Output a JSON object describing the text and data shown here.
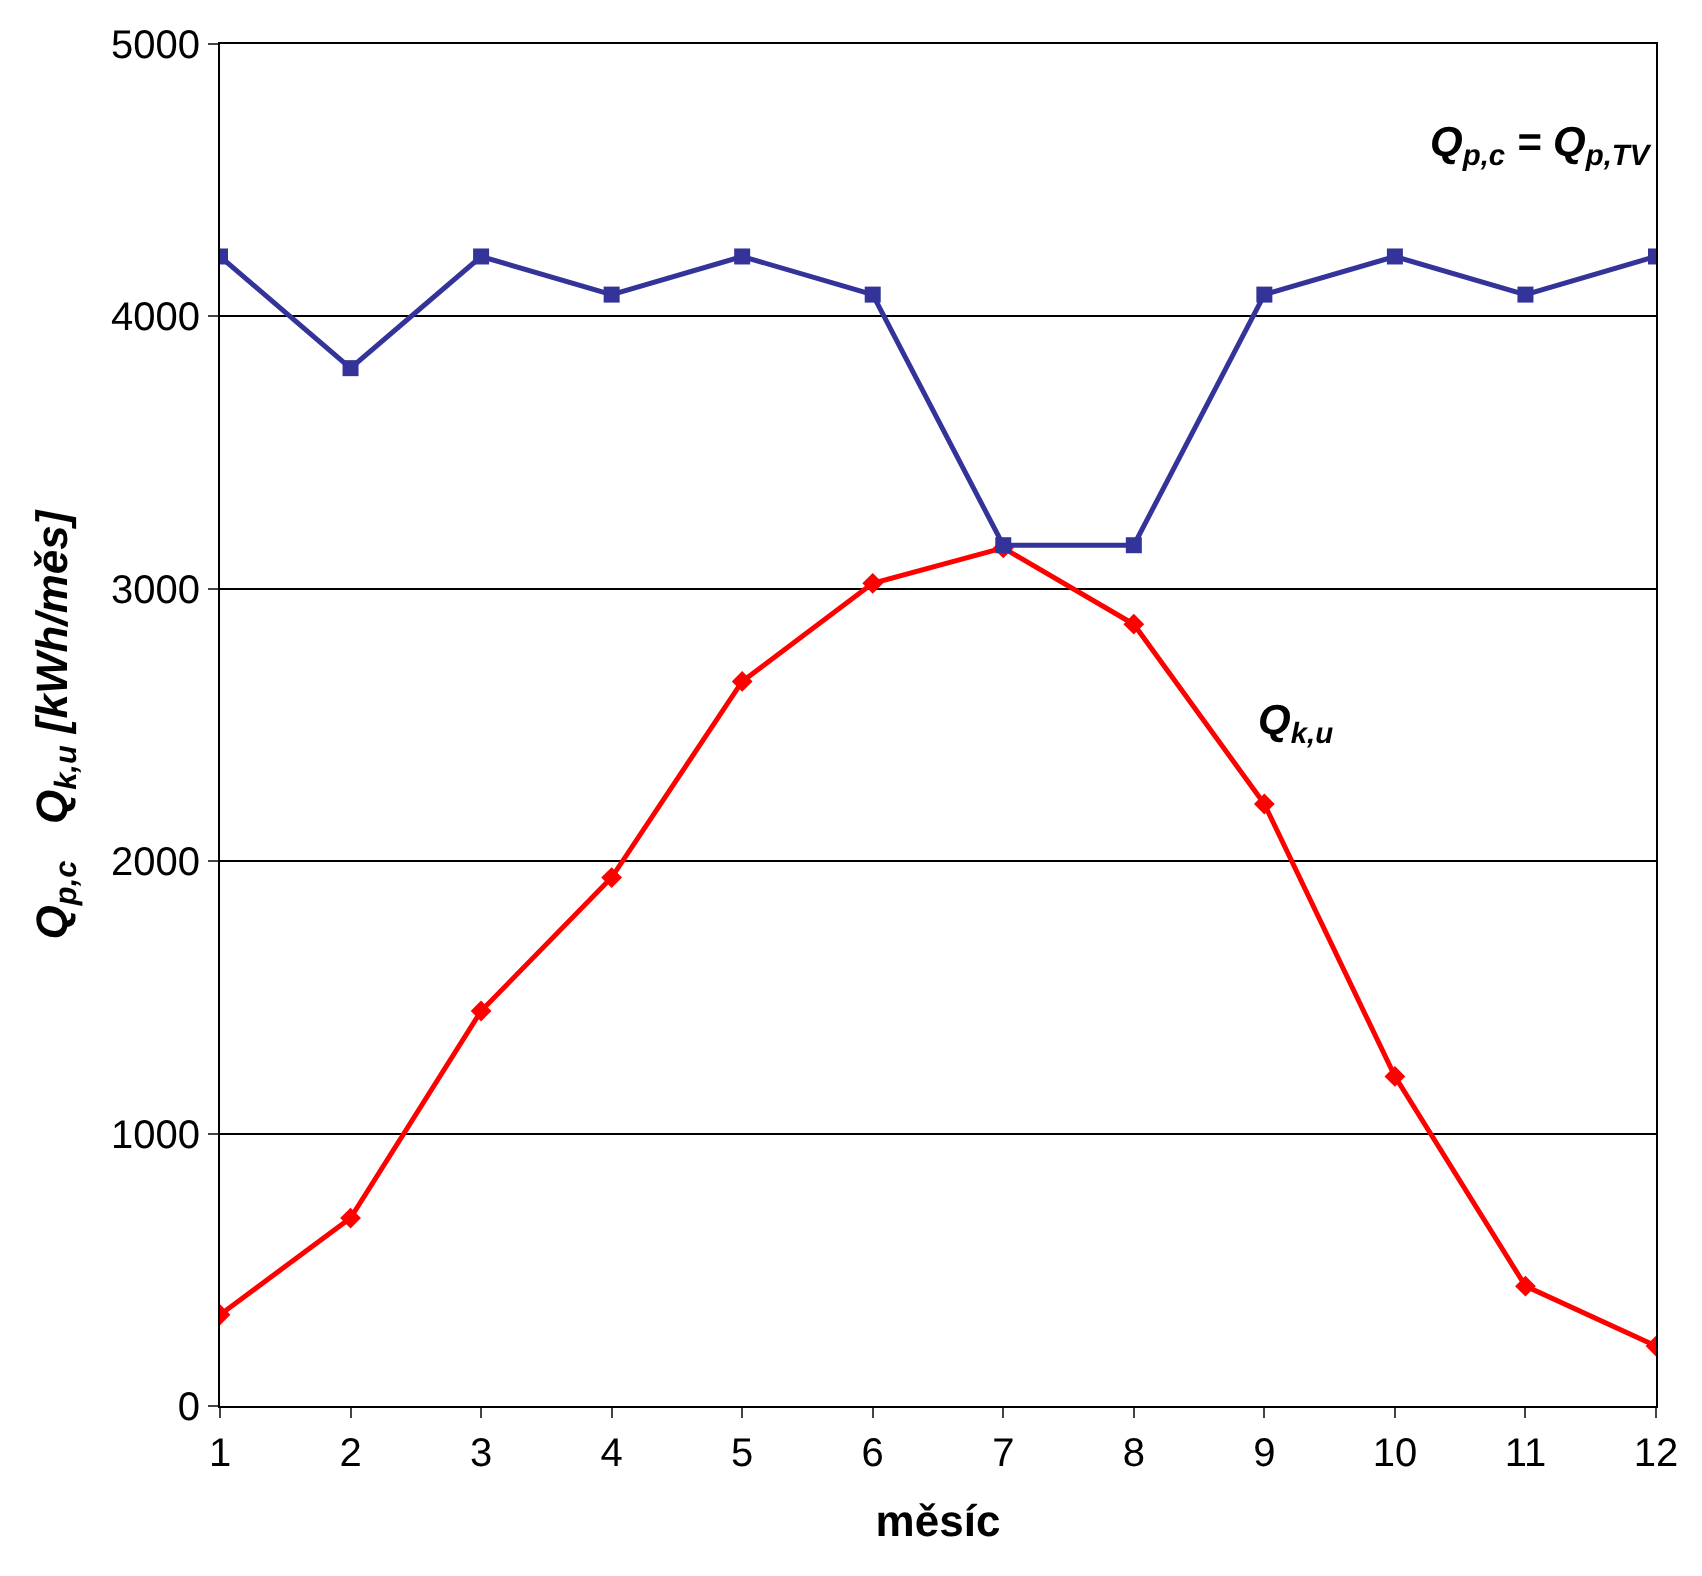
{
  "chart_data": {
    "type": "line",
    "xlabel": "měsíc",
    "ylabel": "Q$_{p,c}$   Q$_{k,u}$ [kWh/měs]",
    "x": [
      1,
      2,
      3,
      4,
      5,
      6,
      7,
      8,
      9,
      10,
      11,
      12
    ],
    "series": [
      {
        "name": "Q$_{p,c}$ = Q$_{p,TV}$",
        "color": "#333399",
        "marker": "square",
        "values": [
          4220,
          3810,
          4220,
          4080,
          4220,
          4080,
          3160,
          3160,
          4080,
          4220,
          4080,
          4220
        ]
      },
      {
        "name": "Q$_{k,u}$",
        "color": "#ff0000",
        "marker": "diamond",
        "values": [
          335,
          690,
          1450,
          1940,
          2660,
          3020,
          3150,
          2870,
          2210,
          1210,
          440,
          220
        ]
      }
    ],
    "xlim": [
      1,
      12
    ],
    "xticks": [
      1,
      2,
      3,
      4,
      5,
      6,
      7,
      8,
      9,
      10,
      11,
      12
    ],
    "ylim": [
      0,
      5000
    ],
    "yticks": [
      0,
      1000,
      2000,
      3000,
      4000,
      5000
    ],
    "grid": "y",
    "legend": false,
    "line_style": "solid"
  }
}
